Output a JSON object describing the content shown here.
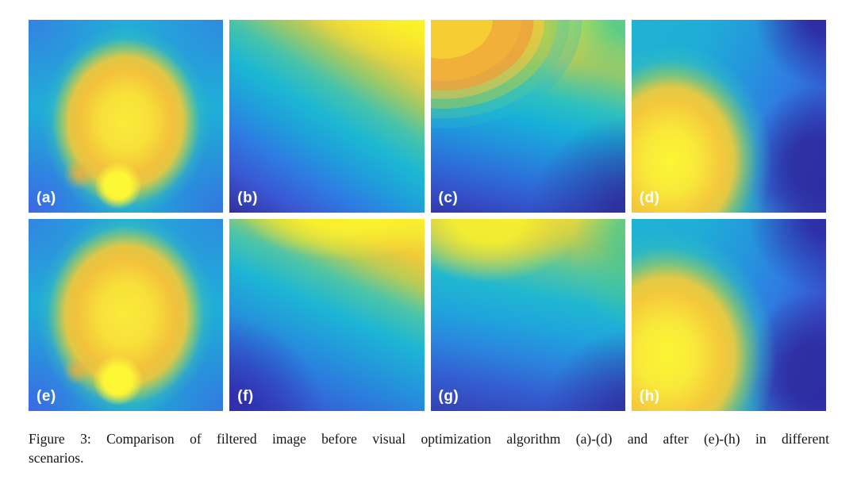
{
  "figure": {
    "panels": [
      {
        "label": "(a)",
        "group": "before",
        "description": "central yellow-orange hotspot with bright yellow spot at bottom center on cyan background, blue corners"
      },
      {
        "label": "(b)",
        "group": "before",
        "description": "banded diagonal gradient from bright yellow top-right to dark navy bottom-left"
      },
      {
        "label": "(c)",
        "group": "before",
        "description": "stepped wavy contour bands, yellow and orange upper-left fading to blue and navy bottom-right"
      },
      {
        "label": "(d)",
        "group": "before",
        "description": "yellow hotspot at lower-left, cyan-to-blue field with dark navy patches at right side"
      },
      {
        "label": "(e)",
        "group": "after",
        "description": "smoothed central yellow hotspot with bright spot at bottom center on cyan background"
      },
      {
        "label": "(f)",
        "group": "after",
        "description": "smooth gradient with yellow band across top fading to blue bottom-left"
      },
      {
        "label": "(g)",
        "group": "after",
        "description": "smooth gradient, yellow top-left to blue bottom, teal band at upper-right edge"
      },
      {
        "label": "(h)",
        "group": "after",
        "description": "smoothed yellow hotspot lower-left with dark blue region on the right"
      }
    ],
    "caption": {
      "line1": "Figure 3: Comparison of filtered image before visual optimization algorithm (a)-(d) and after (e)-(h) in different",
      "line2": "scenarios.",
      "full": "Figure 3: Comparison of filtered image before visual optimization algorithm (a)-(d) and after (e)-(h) in different scenarios."
    },
    "colormap_colors": [
      "#312f9e",
      "#3349c0",
      "#2f7ce0",
      "#1cb6d4",
      "#2fc2b4",
      "#7ac878",
      "#cfcc4b",
      "#f4e93a",
      "#f2ae3a",
      "#fdfa31"
    ],
    "label_text_color": "#ffffff"
  }
}
